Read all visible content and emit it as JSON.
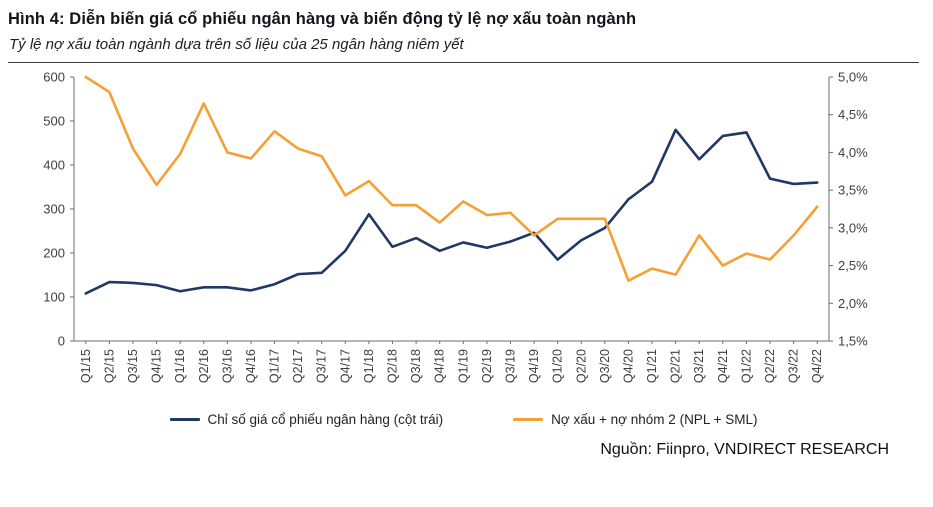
{
  "header": {
    "title": "Hình 4: Diễn biến giá cổ phiếu ngân hàng và biến động tỷ lệ nợ xấu toàn ngành",
    "subtitle": "Tỷ lệ nợ xấu toàn ngành dựa trên số liệu của 25 ngân hàng niêm yết"
  },
  "footer": {
    "source": "Nguồn: Fiinpro, VNDIRECT RESEARCH"
  },
  "colors": {
    "navy": "#1F3864",
    "orange": "#F5A033",
    "axis": "#6e6e6e",
    "tick_text": "#404040"
  },
  "chart_data": {
    "type": "line",
    "title": "",
    "grid": false,
    "legend_position": "bottom",
    "categories": [
      "Q1/15",
      "Q2/15",
      "Q3/15",
      "Q4/15",
      "Q1/16",
      "Q2/16",
      "Q3/16",
      "Q4/16",
      "Q1/17",
      "Q2/17",
      "Q3/17",
      "Q4/17",
      "Q1/18",
      "Q2/18",
      "Q3/18",
      "Q4/18",
      "Q1/19",
      "Q2/19",
      "Q3/19",
      "Q4/19",
      "Q1/20",
      "Q2/20",
      "Q3/20",
      "Q4/20",
      "Q1/21",
      "Q2/21",
      "Q3/21",
      "Q4/21",
      "Q1/22",
      "Q2/22",
      "Q3/22",
      "Q4/22"
    ],
    "series": [
      {
        "name": "Chỉ số giá cổ phiếu ngân hàng (cột trái)",
        "axis": "left",
        "color": "#1F3864",
        "values": [
          108,
          134,
          132,
          127,
          113,
          122,
          122,
          115,
          129,
          152,
          155,
          205,
          288,
          214,
          234,
          205,
          224,
          212,
          226,
          246,
          185,
          229,
          257,
          322,
          362,
          480,
          413,
          466,
          474,
          369,
          357,
          360
        ]
      },
      {
        "name": "Nợ xấu + nợ nhóm 2 (NPL + SML)",
        "axis": "right",
        "color": "#F5A033",
        "values": [
          5.0,
          4.8,
          4.05,
          3.57,
          3.98,
          4.65,
          4.0,
          3.92,
          4.28,
          4.05,
          3.95,
          3.43,
          3.62,
          3.3,
          3.3,
          3.07,
          3.35,
          3.17,
          3.2,
          2.9,
          3.12,
          3.12,
          3.12,
          2.3,
          2.46,
          2.38,
          2.9,
          2.5,
          2.66,
          2.58,
          2.9,
          3.28
        ]
      }
    ],
    "left_axis": {
      "min": 0,
      "max": 600,
      "step": 100,
      "tick_labels": [
        "0",
        "100",
        "200",
        "300",
        "400",
        "500",
        "600"
      ]
    },
    "right_axis": {
      "min": 1.5,
      "max": 5.0,
      "step": 0.5,
      "tick_labels": [
        "1,5%",
        "2,0%",
        "2,5%",
        "3,0%",
        "3,5%",
        "4,0%",
        "4,5%",
        "5,0%"
      ]
    }
  }
}
